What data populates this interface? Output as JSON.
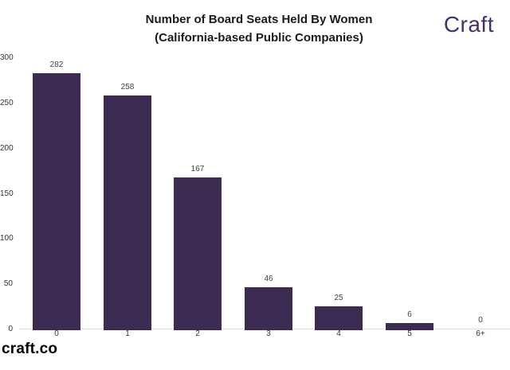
{
  "branding": {
    "logo_text": "Craft",
    "logo_color": "#45316b",
    "footer_text": "craft.co"
  },
  "chart_data": {
    "type": "bar",
    "title": "Number of Board Seats Held By Women",
    "subtitle": "(California-based Public Companies)",
    "categories": [
      "0",
      "1",
      "2",
      "3",
      "4",
      "5",
      "6+"
    ],
    "values": [
      282,
      258,
      167,
      46,
      25,
      6,
      0
    ],
    "xlabel": "",
    "ylabel": "",
    "ylim": [
      0,
      300
    ],
    "yticks": [
      0,
      50,
      100,
      150,
      200,
      250,
      300
    ],
    "grid": false,
    "legend_position": "none",
    "show_value_labels": true,
    "bar_color": "#3d2c51",
    "axis_line_color": "#e0e0e0"
  }
}
